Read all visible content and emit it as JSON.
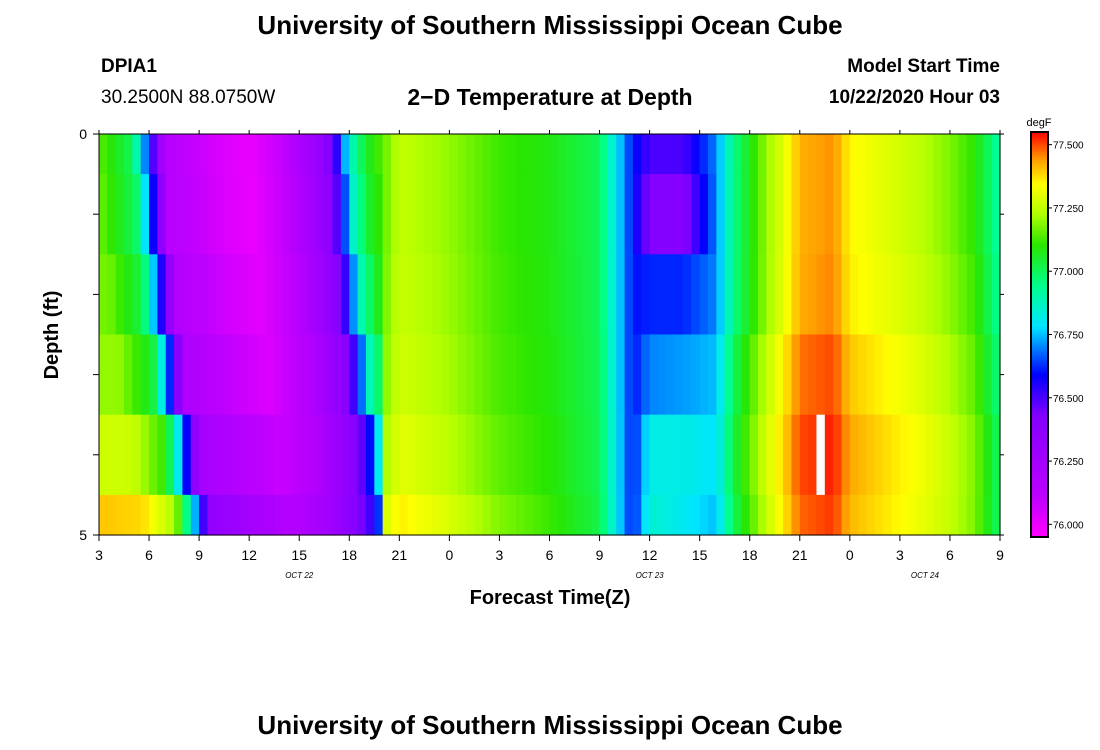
{
  "page_title": "University of Southern Mississippi Ocean Cube",
  "footer_title": "University of Southern Mississippi Ocean Cube",
  "station": {
    "id": "DPIA1",
    "coords": "30.2500N 88.0750W"
  },
  "model": {
    "label": "Model Start Time",
    "value": "10/22/2020 Hour 03"
  },
  "chart_data": {
    "type": "heatmap",
    "title": "2−D Temperature at Depth",
    "xlabel": "Forecast Time(Z)",
    "ylabel": "Depth (ft)",
    "colorbar_unit": "degF",
    "ylim": [
      0,
      5
    ],
    "y_tick_labels": [
      {
        "v": 0,
        "label": "0"
      },
      {
        "v": 5,
        "label": "5"
      }
    ],
    "x_start_hour": 3,
    "x_end_hour": 57,
    "x_tick_labels": [
      "3",
      "6",
      "9",
      "12",
      "15",
      "18",
      "21",
      "0",
      "3",
      "6",
      "9",
      "12",
      "15",
      "18",
      "21",
      "0",
      "3",
      "6",
      "9"
    ],
    "date_labels": [
      {
        "hour": 15,
        "label": "OCT 22"
      },
      {
        "hour": 36,
        "label": "OCT 23"
      },
      {
        "hour": 52.5,
        "label": "OCT 24"
      }
    ],
    "vmin": 75.95,
    "vmax": 77.55,
    "colorbar_ticks": [
      "76.000",
      "76.250",
      "76.500",
      "76.750",
      "77.000",
      "77.250",
      "77.500"
    ],
    "colorbar_tick_values": [
      76.0,
      76.25,
      76.5,
      76.75,
      77.0,
      77.25,
      77.5
    ],
    "missing_cell": {
      "hour": 46,
      "level": 4
    },
    "time_profile": [
      [
        3,
        77.15
      ],
      [
        5,
        77.0
      ],
      [
        6,
        76.6
      ],
      [
        7,
        76.15
      ],
      [
        10,
        76.05
      ],
      [
        12,
        76.0
      ],
      [
        14,
        76.1
      ],
      [
        16.5,
        76.35
      ],
      [
        17.3,
        76.55
      ],
      [
        18,
        76.85
      ],
      [
        19,
        77.05
      ],
      [
        21,
        77.25
      ],
      [
        24,
        77.2
      ],
      [
        27,
        77.12
      ],
      [
        30,
        77.08
      ],
      [
        33,
        77.0
      ],
      [
        35,
        76.6
      ],
      [
        36,
        76.5
      ],
      [
        38,
        76.5
      ],
      [
        40,
        76.7
      ],
      [
        41,
        76.95
      ],
      [
        43,
        77.2
      ],
      [
        44,
        77.3
      ],
      [
        45,
        77.42
      ],
      [
        47,
        77.45
      ],
      [
        48,
        77.35
      ],
      [
        50,
        77.3
      ],
      [
        52,
        77.25
      ],
      [
        54,
        77.18
      ],
      [
        55.5,
        77.1
      ],
      [
        57,
        76.9
      ]
    ],
    "depth_levels": [
      {
        "depth_range": [
          0,
          0.5
        ],
        "offset": [
          [
            3,
            0
          ],
          [
            40,
            0
          ],
          [
            57,
            0
          ]
        ],
        "front_shift": 0
      },
      {
        "depth_range": [
          0.5,
          1.5
        ],
        "offset": [
          [
            3,
            0
          ],
          [
            35,
            0
          ],
          [
            36,
            -0.08
          ],
          [
            38,
            -0.1
          ],
          [
            40,
            0
          ],
          [
            57,
            0
          ]
        ],
        "front_shift": 0.2
      },
      {
        "depth_range": [
          1.5,
          2.5
        ],
        "offset": [
          [
            3,
            0.02
          ],
          [
            35,
            0
          ],
          [
            36,
            0.12
          ],
          [
            38,
            0.12
          ],
          [
            40,
            0
          ],
          [
            57,
            0.02
          ]
        ],
        "front_shift": 0.6
      },
      {
        "depth_range": [
          2.5,
          3.5
        ],
        "offset": [
          [
            3,
            0.05
          ],
          [
            35,
            0
          ],
          [
            36,
            0.2
          ],
          [
            38,
            0.22
          ],
          [
            40,
            0.05
          ],
          [
            57,
            0.05
          ]
        ],
        "front_shift": 1.2
      },
      {
        "depth_range": [
          3.5,
          4.5
        ],
        "offset": [
          [
            3,
            0.12
          ],
          [
            35,
            0
          ],
          [
            36,
            0.32
          ],
          [
            38,
            0.32
          ],
          [
            40,
            0.08
          ],
          [
            57,
            0.08
          ]
        ],
        "front_shift": 2.0
      },
      {
        "depth_range": [
          4.5,
          5
        ],
        "offset": [
          [
            3,
            0.25
          ],
          [
            35,
            0
          ],
          [
            36,
            0.35
          ],
          [
            38,
            0.3
          ],
          [
            40,
            0.05
          ],
          [
            57,
            0.08
          ]
        ],
        "front_shift": 2.6
      }
    ]
  }
}
